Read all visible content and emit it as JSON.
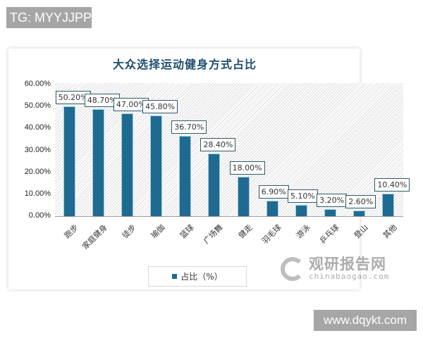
{
  "watermarks": {
    "top": "TG: MYYJJPP",
    "bottom": "www.dqykt.com"
  },
  "chart_data": {
    "type": "bar",
    "title": "大众选择运动健身方式占比",
    "categories": [
      "跑步",
      "家庭健身",
      "徒步",
      "瑜伽",
      "篮球",
      "广场舞",
      "健走",
      "羽毛球",
      "游泳",
      "乒乓球",
      "登山",
      "其他"
    ],
    "values": [
      50.2,
      48.7,
      47.0,
      45.8,
      36.7,
      28.4,
      18.0,
      6.9,
      5.1,
      3.2,
      2.6,
      10.4
    ],
    "value_labels": [
      "50.20%",
      "48.70%",
      "47.00%",
      "45.80%",
      "36.70%",
      "28.40%",
      "18.00%",
      "6.90%",
      "5.10%",
      "3.20%",
      "2.60%",
      "10.40%"
    ],
    "xlabel": "",
    "ylabel": "",
    "ylim": [
      0,
      60
    ],
    "yticks": [
      "0.00%",
      "10.00%",
      "20.00%",
      "30.00%",
      "40.00%",
      "50.00%",
      "60.00%"
    ],
    "legend": {
      "entries": [
        "占比（%）"
      ],
      "position": "bottom"
    },
    "grid": false,
    "colors": {
      "bar": "#1f6a90",
      "title": "#1f4e6e"
    }
  },
  "logo": {
    "cn": "观研报告网",
    "en": "chinabaogao.com"
  }
}
